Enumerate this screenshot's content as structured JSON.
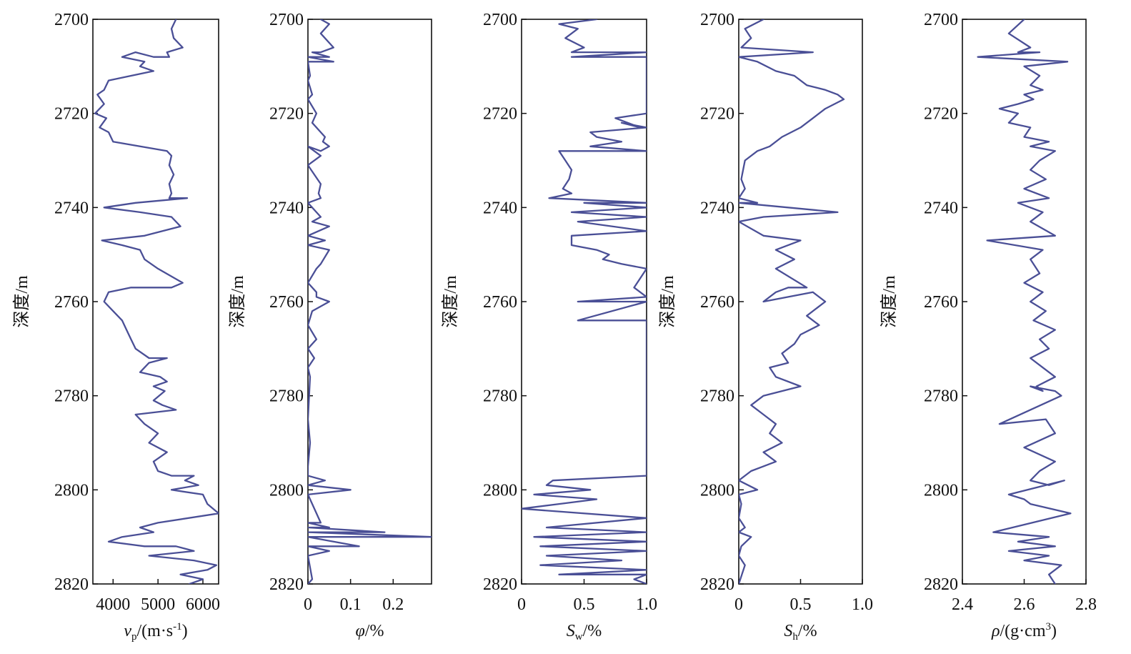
{
  "chart_data": [
    {
      "type": "line",
      "ylabel": "深度/m",
      "xlabel": "vp/(m·s-1)",
      "xlabel_main": "v",
      "xlabel_sub": "p",
      "xlabel_rest": "/(m·s",
      "xlabel_sup": "-1",
      "xlabel_end": ")",
      "xlim": [
        3550,
        6350
      ],
      "xticks": [
        4000,
        5000,
        6000
      ],
      "xtick_labels": [
        "4000",
        "5000",
        "6000"
      ],
      "ylim": [
        2700,
        2820
      ],
      "yticks": [
        2700,
        2720,
        2740,
        2760,
        2780,
        2800,
        2820
      ],
      "ytick_labels": [
        "2700",
        "2720",
        "2740",
        "2760",
        "2780",
        "2800",
        "2820"
      ],
      "series": [
        {
          "color": "#4a4f96",
          "x": [
            5400,
            5300,
            5350,
            5550,
            5200,
            5250,
            4900,
            4500,
            4200,
            4700,
            4600,
            4900,
            4400,
            3900,
            3800,
            3650,
            3800,
            3600,
            3850,
            3700,
            3900,
            4000,
            4600,
            5200,
            5300,
            5250,
            5350,
            5250,
            5300,
            5250,
            5650,
            4500,
            3800,
            4600,
            5300,
            5500,
            4700,
            3750,
            4200,
            4600,
            4700,
            5000,
            5550,
            5300,
            4400,
            3900,
            3800,
            4000,
            4200,
            4300,
            4400,
            4500,
            4800,
            5200,
            4800,
            4700,
            4600,
            5050,
            5200,
            4900,
            5150,
            4900,
            5100,
            5400,
            4500,
            4700,
            5000,
            4800,
            5200,
            4900,
            5000,
            5300,
            5800,
            5600,
            5900,
            5300,
            6000,
            6100,
            6350,
            5000,
            4600,
            4900,
            4200,
            3900,
            4700,
            5400,
            5800,
            4800,
            5800,
            6300,
            6100,
            5500,
            6000,
            5700
          ],
          "y": [
            2700,
            2702,
            2704,
            2706,
            2707,
            2708,
            2708,
            2707,
            2708,
            2709,
            2710,
            2711,
            2712,
            2713,
            2715,
            2716,
            2718,
            2720,
            2721,
            2723,
            2724,
            2726,
            2727,
            2728,
            2729,
            2731,
            2733,
            2735,
            2737,
            2738,
            2738,
            2739,
            2740,
            2741,
            2742,
            2744,
            2746,
            2747,
            2748,
            2749,
            2751,
            2753,
            2756,
            2757,
            2757,
            2758,
            2760,
            2762,
            2764,
            2766,
            2768,
            2770,
            2772,
            2772,
            2773,
            2774,
            2775,
            2776,
            2777,
            2778,
            2779,
            2781,
            2782,
            2783,
            2784,
            2786,
            2788,
            2790,
            2792,
            2794,
            2796,
            2797,
            2797,
            2798,
            2799,
            2800,
            2801,
            2803,
            2805,
            2807,
            2808,
            2809,
            2810,
            2811,
            2812,
            2812,
            2813,
            2814,
            2815,
            2816,
            2817,
            2818,
            2819,
            2820
          ]
        }
      ]
    },
    {
      "type": "line",
      "ylabel": "深度/m",
      "xlabel": "φ/%",
      "xlabel_main": "φ",
      "xlabel_sub": "",
      "xlabel_rest": "/%",
      "xlabel_sup": "",
      "xlabel_end": "",
      "xlim": [
        0,
        0.29
      ],
      "xticks": [
        0,
        0.1,
        0.2
      ],
      "xtick_labels": [
        "0",
        "0.1",
        "0.2"
      ],
      "ylim": [
        2700,
        2820
      ],
      "yticks": [
        2700,
        2720,
        2740,
        2760,
        2780,
        2800,
        2820
      ],
      "ytick_labels": [
        "2700",
        "2720",
        "2740",
        "2760",
        "2780",
        "2800",
        "2820"
      ],
      "series": [
        {
          "color": "#4a4f96",
          "x": [
            0.03,
            0.05,
            0.03,
            0.06,
            0.03,
            0.01,
            0.05,
            0.0,
            0.06,
            0.0,
            0.005,
            0.0,
            0.01,
            0.0,
            0.02,
            0.01,
            0.03,
            0.04,
            0.035,
            0.05,
            0.03,
            0.0,
            0.03,
            0.0,
            0.03,
            0.025,
            0.03,
            0.0,
            0.02,
            0.03,
            0.01,
            0.05,
            0.0,
            0.04,
            0.0,
            0.05,
            0.03,
            0.02,
            0.0,
            0.02,
            0.02,
            0.05,
            0.01,
            0.0,
            0.02,
            0.0,
            0.015,
            0.0,
            0.005,
            0.0,
            0.005,
            0.0,
            0.0,
            0.04,
            0.0,
            0.1,
            0.0,
            0.03,
            0.0,
            0.05,
            0.0,
            0.18,
            0.0,
            0.29,
            0.0,
            0.12,
            0.0,
            0.05,
            0.0,
            0.01,
            0.0
          ],
          "y": [
            2700,
            2701,
            2703,
            2706,
            2707,
            2707,
            2708,
            2708,
            2709,
            2709,
            2712,
            2713,
            2716,
            2717,
            2720,
            2722,
            2724,
            2725,
            2726,
            2727,
            2728,
            2727,
            2729,
            2731,
            2735,
            2737,
            2738,
            2739,
            2741,
            2742,
            2743,
            2744,
            2746,
            2747,
            2748,
            2749,
            2752,
            2753,
            2756,
            2758,
            2759,
            2760,
            2762,
            2765,
            2768,
            2770,
            2772,
            2774,
            2776,
            2785,
            2790,
            2795,
            2797,
            2798,
            2799,
            2800,
            2801,
            2807,
            2807,
            2808,
            2808,
            2809,
            2809,
            2810,
            2810,
            2812,
            2812,
            2813,
            2814,
            2819,
            2820
          ]
        }
      ]
    },
    {
      "type": "line",
      "ylabel": "深度/m",
      "xlabel": "Sw/%",
      "xlabel_main": "S",
      "xlabel_sub": "w",
      "xlabel_rest": "/%",
      "xlabel_sup": "",
      "xlabel_end": "",
      "xlim": [
        0,
        1.0
      ],
      "xticks": [
        0,
        0.5,
        1.0
      ],
      "xtick_labels": [
        "0",
        "0.5",
        "1.0"
      ],
      "ylim": [
        2700,
        2820
      ],
      "yticks": [
        2700,
        2720,
        2740,
        2760,
        2780,
        2800,
        2820
      ],
      "ytick_labels": [
        "2700",
        "2720",
        "2740",
        "2760",
        "2780",
        "2800",
        "2820"
      ],
      "series": [
        {
          "color": "#4a4f96",
          "x": [
            0.6,
            0.3,
            0.45,
            0.35,
            0.5,
            0.4,
            1.0,
            0.4,
            1.0,
            1.0,
            1.0,
            0.75,
            0.95,
            0.8,
            1.0,
            0.55,
            0.6,
            0.8,
            0.55,
            1.0,
            0.3,
            0.35,
            0.4,
            0.38,
            0.33,
            0.4,
            0.22,
            1.0,
            0.5,
            1.0,
            0.4,
            1.0,
            0.45,
            1.0,
            0.4,
            0.4,
            0.6,
            0.7,
            0.65,
            0.8,
            1.0,
            0.9,
            1.0,
            0.45,
            1.0,
            0.45,
            1.0,
            1.0,
            0.25,
            0.2,
            0.55,
            0.1,
            0.6,
            0.3,
            0.0,
            1.0,
            0.2,
            1.0,
            0.1,
            1.0,
            0.15,
            1.0,
            0.2,
            0.8,
            0.15,
            1.0,
            0.3,
            1.0,
            0.9,
            1.0
          ],
          "y": [
            2700,
            2701,
            2702,
            2704,
            2706,
            2707,
            2707,
            2708,
            2708,
            2715,
            2720,
            2721,
            2723,
            2722,
            2723,
            2724,
            2725,
            2726,
            2727,
            2728,
            2728,
            2730,
            2732,
            2734,
            2736,
            2737,
            2738,
            2739,
            2739,
            2740,
            2741,
            2742,
            2743,
            2745,
            2746,
            2748,
            2749,
            2750,
            2751,
            2752,
            2753,
            2757,
            2759,
            2760,
            2760,
            2764,
            2764,
            2797,
            2798,
            2799,
            2800,
            2801,
            2802,
            2803,
            2804,
            2806,
            2808,
            2809,
            2810,
            2811,
            2812,
            2813,
            2814,
            2815,
            2816,
            2817,
            2818,
            2818,
            2819,
            2820
          ]
        }
      ]
    },
    {
      "type": "line",
      "ylabel": "深度/m",
      "xlabel": "Sh/%",
      "xlabel_main": "S",
      "xlabel_sub": "h",
      "xlabel_rest": "/%",
      "xlabel_sup": "",
      "xlabel_end": "",
      "xlim": [
        0,
        1.0
      ],
      "xticks": [
        0,
        0.5,
        1.0
      ],
      "xtick_labels": [
        "0",
        "0.5",
        "1.0"
      ],
      "ylim": [
        2700,
        2820
      ],
      "yticks": [
        2700,
        2720,
        2740,
        2760,
        2780,
        2800,
        2820
      ],
      "ytick_labels": [
        "2700",
        "2720",
        "2740",
        "2760",
        "2780",
        "2800",
        "2820"
      ],
      "series": [
        {
          "color": "#4a4f96",
          "x": [
            0.2,
            0.05,
            0.1,
            0.02,
            0.6,
            0.0,
            0.15,
            0.3,
            0.45,
            0.55,
            0.7,
            0.8,
            0.85,
            0.7,
            0.6,
            0.5,
            0.35,
            0.25,
            0.15,
            0.05,
            0.02,
            0.05,
            0.0,
            0.15,
            0.0,
            0.8,
            0.2,
            0.0,
            0.2,
            0.5,
            0.3,
            0.45,
            0.3,
            0.55,
            0.4,
            0.3,
            0.2,
            0.6,
            0.7,
            0.55,
            0.65,
            0.5,
            0.45,
            0.35,
            0.4,
            0.25,
            0.3,
            0.5,
            0.2,
            0.1,
            0.2,
            0.3,
            0.25,
            0.35,
            0.2,
            0.3,
            0.2,
            0.1,
            0.0,
            0.15,
            0.0,
            0.02,
            0.0,
            0.05,
            0.0,
            0.1,
            0.02,
            0.0,
            0.05,
            0.0
          ],
          "y": [
            2700,
            2702,
            2704,
            2706,
            2707,
            2708,
            2709,
            2711,
            2712,
            2714,
            2715,
            2716,
            2717,
            2719,
            2721,
            2723,
            2725,
            2727,
            2728,
            2730,
            2734,
            2736,
            2738,
            2739,
            2739,
            2741,
            2742,
            2743,
            2746,
            2747,
            2749,
            2751,
            2753,
            2757,
            2757,
            2758,
            2760,
            2758,
            2760,
            2763,
            2765,
            2767,
            2769,
            2771,
            2773,
            2774,
            2776,
            2778,
            2780,
            2782,
            2784,
            2786,
            2788,
            2790,
            2792,
            2794,
            2795,
            2796,
            2798,
            2800,
            2801,
            2803,
            2806,
            2808,
            2809,
            2810,
            2812,
            2814,
            2816,
            2820
          ]
        }
      ]
    },
    {
      "type": "line",
      "ylabel": "深度/m",
      "xlabel": "ρ/(g·cm3)",
      "xlabel_main": "ρ",
      "xlabel_sub": "",
      "xlabel_rest": "/(g·cm",
      "xlabel_sup": "3",
      "xlabel_end": ")",
      "xlim": [
        2.4,
        2.8
      ],
      "xticks": [
        2.4,
        2.6,
        2.8
      ],
      "xtick_labels": [
        "2.4",
        "2.6",
        "2.8"
      ],
      "ylim": [
        2700,
        2820
      ],
      "yticks": [
        2700,
        2720,
        2740,
        2760,
        2780,
        2800,
        2820
      ],
      "ytick_labels": [
        "2700",
        "2720",
        "2740",
        "2760",
        "2780",
        "2800",
        "2820"
      ],
      "series": [
        {
          "color": "#4a4f96",
          "x": [
            2.6,
            2.55,
            2.62,
            2.58,
            2.65,
            2.45,
            2.74,
            2.6,
            2.65,
            2.62,
            2.66,
            2.6,
            2.63,
            2.58,
            2.52,
            2.58,
            2.55,
            2.62,
            2.6,
            2.68,
            2.62,
            2.7,
            2.65,
            2.62,
            2.67,
            2.6,
            2.68,
            2.58,
            2.66,
            2.62,
            2.7,
            2.48,
            2.66,
            2.62,
            2.65,
            2.6,
            2.66,
            2.62,
            2.67,
            2.63,
            2.7,
            2.65,
            2.68,
            2.62,
            2.66,
            2.7,
            2.64,
            2.66,
            2.62,
            2.7,
            2.72,
            2.52,
            2.67,
            2.7,
            2.6,
            2.7,
            2.65,
            2.62,
            2.68,
            2.73,
            2.55,
            2.6,
            2.62,
            2.75,
            2.5,
            2.68,
            2.58,
            2.7,
            2.55,
            2.68,
            2.6,
            2.72,
            2.68,
            2.7
          ],
          "y": [
            2700,
            2703,
            2706,
            2707,
            2707,
            2708,
            2709,
            2710,
            2712,
            2714,
            2715,
            2716,
            2717,
            2718,
            2719,
            2720,
            2722,
            2723,
            2725,
            2726,
            2727,
            2728,
            2730,
            2732,
            2734,
            2736,
            2738,
            2739,
            2741,
            2743,
            2746,
            2747,
            2749,
            2751,
            2754,
            2756,
            2758,
            2760,
            2762,
            2764,
            2766,
            2768,
            2770,
            2772,
            2774,
            2776,
            2778,
            2779,
            2778,
            2779,
            2780,
            2786,
            2785,
            2788,
            2791,
            2794,
            2796,
            2798,
            2799,
            2798,
            2801,
            2802,
            2803,
            2805,
            2809,
            2810,
            2811,
            2812,
            2813,
            2814,
            2815,
            2816,
            2818,
            2820
          ]
        }
      ]
    }
  ]
}
